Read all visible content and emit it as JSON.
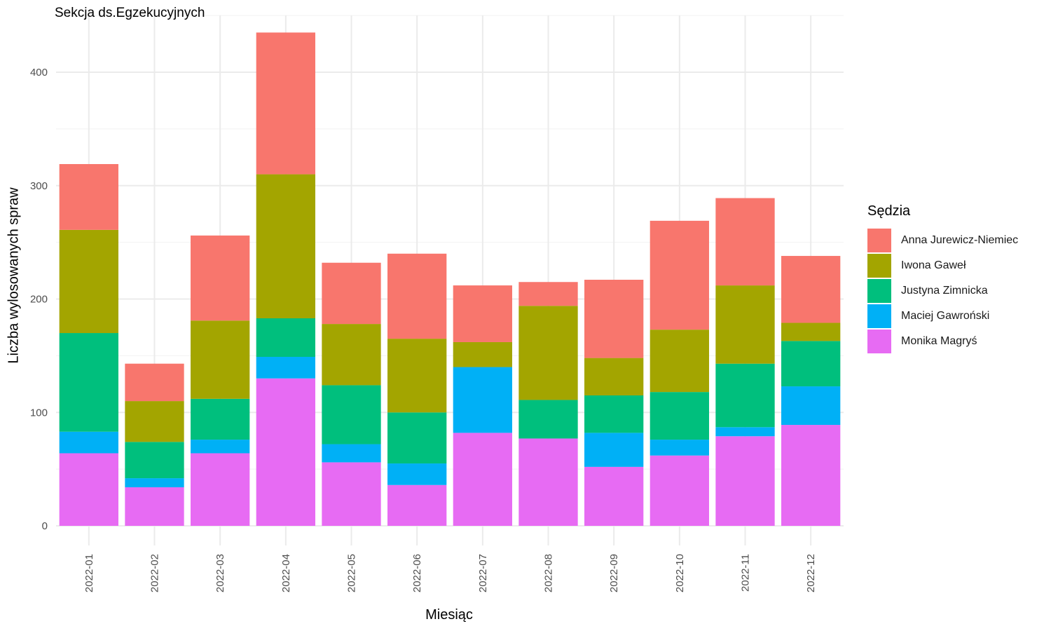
{
  "chart_data": {
    "type": "bar",
    "stacked": true,
    "title": "Sekcja ds.Egzekucyjnych",
    "xlabel": "Miesiąc",
    "ylabel": "Liczba wylosowanych spraw",
    "ylim": [
      0,
      450
    ],
    "y_ticks": [
      0,
      100,
      200,
      300,
      400
    ],
    "grid": true,
    "legend_position": "right",
    "legend_title": "Sędzia",
    "categories": [
      "2022-01",
      "2022-02",
      "2022-03",
      "2022-04",
      "2022-05",
      "2022-06",
      "2022-07",
      "2022-08",
      "2022-09",
      "2022-10",
      "2022-11",
      "2022-12"
    ],
    "series": [
      {
        "name": "Monika Magryś",
        "color": "#E76BF3",
        "values": [
          64,
          34,
          64,
          130,
          56,
          36,
          82,
          77,
          52,
          62,
          79,
          89
        ]
      },
      {
        "name": "Maciej Gawroński",
        "color": "#00B0F6",
        "values": [
          19,
          8,
          12,
          19,
          16,
          19,
          58,
          0,
          30,
          14,
          8,
          34
        ]
      },
      {
        "name": "Justyna Zimnicka",
        "color": "#00BF7D",
        "values": [
          87,
          32,
          36,
          34,
          52,
          45,
          0,
          34,
          33,
          42,
          56,
          40
        ]
      },
      {
        "name": "Iwona Gaweł",
        "color": "#A3A500",
        "values": [
          91,
          36,
          69,
          127,
          54,
          65,
          22,
          83,
          33,
          55,
          69,
          16
        ]
      },
      {
        "name": "Anna Jurewicz-Niemiec",
        "color": "#F8766D",
        "values": [
          58,
          33,
          75,
          125,
          54,
          75,
          50,
          21,
          69,
          96,
          77,
          59
        ]
      }
    ]
  },
  "legend": {
    "title": "Sędzia",
    "items": [
      {
        "label": "Anna Jurewicz-Niemiec",
        "color": "#F8766D"
      },
      {
        "label": "Iwona Gaweł",
        "color": "#A3A500"
      },
      {
        "label": "Justyna Zimnicka",
        "color": "#00BF7D"
      },
      {
        "label": "Maciej Gawroński",
        "color": "#00B0F6"
      },
      {
        "label": "Monika Magryś",
        "color": "#E76BF3"
      }
    ]
  }
}
